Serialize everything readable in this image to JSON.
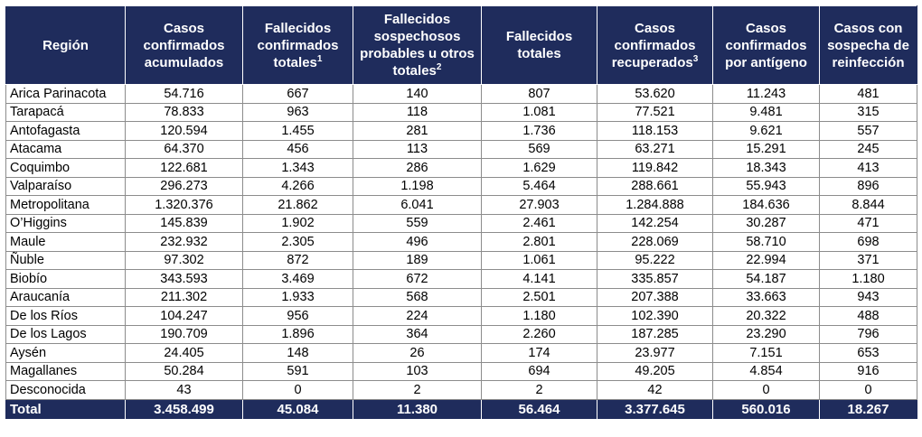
{
  "colors": {
    "header_bg": "#1f2c5c",
    "header_text": "#ffffff",
    "grid": "#8c8c8c"
  },
  "headers": [
    {
      "text": "Región",
      "sup": ""
    },
    {
      "text": "Casos confirmados acumulados",
      "sup": ""
    },
    {
      "text": "Fallecidos confirmados totales",
      "sup": "1"
    },
    {
      "text": "Fallecidos sospechosos probables u otros totales",
      "sup": "2"
    },
    {
      "text": "Fallecidos totales",
      "sup": ""
    },
    {
      "text": "Casos confirmados recuperados",
      "sup": "3"
    },
    {
      "text": "Casos confirmados por antígeno",
      "sup": ""
    },
    {
      "text": "Casos con sospecha de reinfección",
      "sup": ""
    }
  ],
  "rows": [
    [
      "Arica Parinacota",
      "54.716",
      "667",
      "140",
      "807",
      "53.620",
      "11.243",
      "481"
    ],
    [
      "Tarapacá",
      "78.833",
      "963",
      "118",
      "1.081",
      "77.521",
      "9.481",
      "315"
    ],
    [
      "Antofagasta",
      "120.594",
      "1.455",
      "281",
      "1.736",
      "118.153",
      "9.621",
      "557"
    ],
    [
      "Atacama",
      "64.370",
      "456",
      "113",
      "569",
      "63.271",
      "15.291",
      "245"
    ],
    [
      "Coquimbo",
      "122.681",
      "1.343",
      "286",
      "1.629",
      "119.842",
      "18.343",
      "413"
    ],
    [
      "Valparaíso",
      "296.273",
      "4.266",
      "1.198",
      "5.464",
      "288.661",
      "55.943",
      "896"
    ],
    [
      "Metropolitana",
      "1.320.376",
      "21.862",
      "6.041",
      "27.903",
      "1.284.888",
      "184.636",
      "8.844"
    ],
    [
      "O’Higgins",
      "145.839",
      "1.902",
      "559",
      "2.461",
      "142.254",
      "30.287",
      "471"
    ],
    [
      "Maule",
      "232.932",
      "2.305",
      "496",
      "2.801",
      "228.069",
      "58.710",
      "698"
    ],
    [
      "Ñuble",
      "97.302",
      "872",
      "189",
      "1.061",
      "95.222",
      "22.994",
      "371"
    ],
    [
      "Biobío",
      "343.593",
      "3.469",
      "672",
      "4.141",
      "335.857",
      "54.187",
      "1.180"
    ],
    [
      "Araucanía",
      "211.302",
      "1.933",
      "568",
      "2.501",
      "207.388",
      "33.663",
      "943"
    ],
    [
      "De los Ríos",
      "104.247",
      "956",
      "224",
      "1.180",
      "102.390",
      "20.322",
      "488"
    ],
    [
      "De los Lagos",
      "190.709",
      "1.896",
      "364",
      "2.260",
      "187.285",
      "23.290",
      "796"
    ],
    [
      "Aysén",
      "24.405",
      "148",
      "26",
      "174",
      "23.977",
      "7.151",
      "653"
    ],
    [
      "Magallanes",
      "50.284",
      "591",
      "103",
      "694",
      "49.205",
      "4.854",
      "916"
    ],
    [
      "Desconocida",
      "43",
      "0",
      "2",
      "2",
      "42",
      "0",
      "0"
    ]
  ],
  "total": [
    "Total",
    "3.458.499",
    "45.084",
    "11.380",
    "56.464",
    "3.377.645",
    "560.016",
    "18.267"
  ]
}
